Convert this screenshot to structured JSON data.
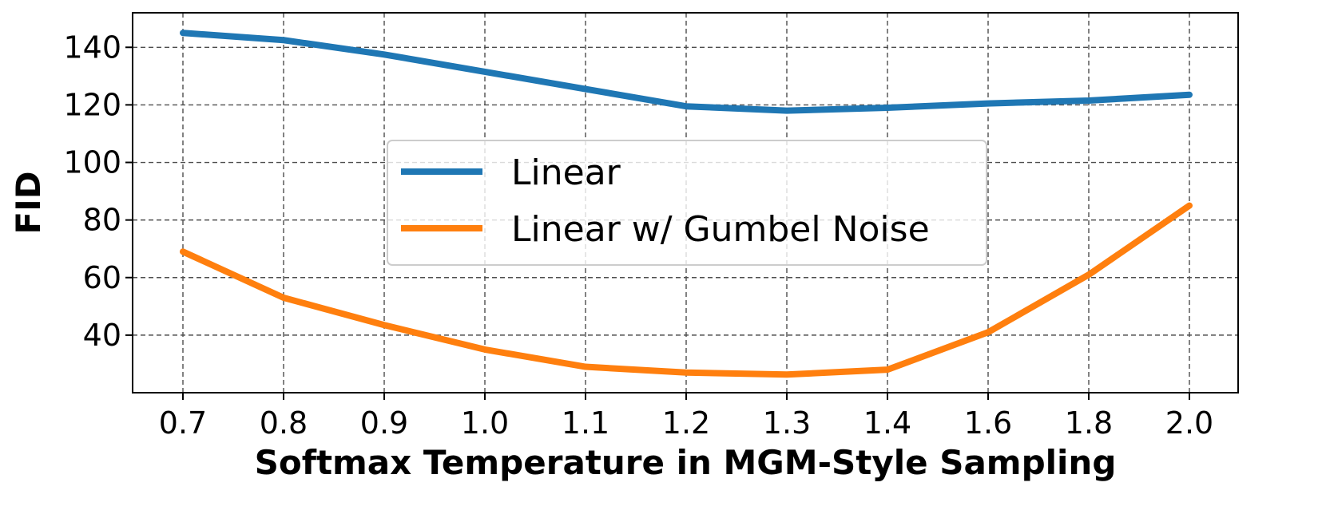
{
  "chart_data": {
    "type": "line",
    "title": "",
    "xlabel": "Softmax Temperature in MGM-Style Sampling",
    "ylabel": "FID",
    "categories": [
      "0.7",
      "0.8",
      "0.9",
      "1.0",
      "1.1",
      "1.2",
      "1.3",
      "1.4",
      "1.6",
      "1.8",
      "2.0"
    ],
    "ylim": [
      20,
      152
    ],
    "yticks": [
      "40",
      "60",
      "80",
      "100",
      "120",
      "140"
    ],
    "grid": true,
    "legend_position": "center",
    "series": [
      {
        "name": "Linear",
        "color": "#1f77b4",
        "values": [
          145,
          142.5,
          137.5,
          131.5,
          125.5,
          119.5,
          118,
          119,
          120.5,
          121.5,
          123.5
        ]
      },
      {
        "name": "Linear w/ Gumbel Noise",
        "color": "#ff7f0e",
        "values": [
          69,
          53,
          43.5,
          35,
          29,
          27,
          26.3,
          28,
          41,
          61,
          85
        ]
      }
    ]
  }
}
